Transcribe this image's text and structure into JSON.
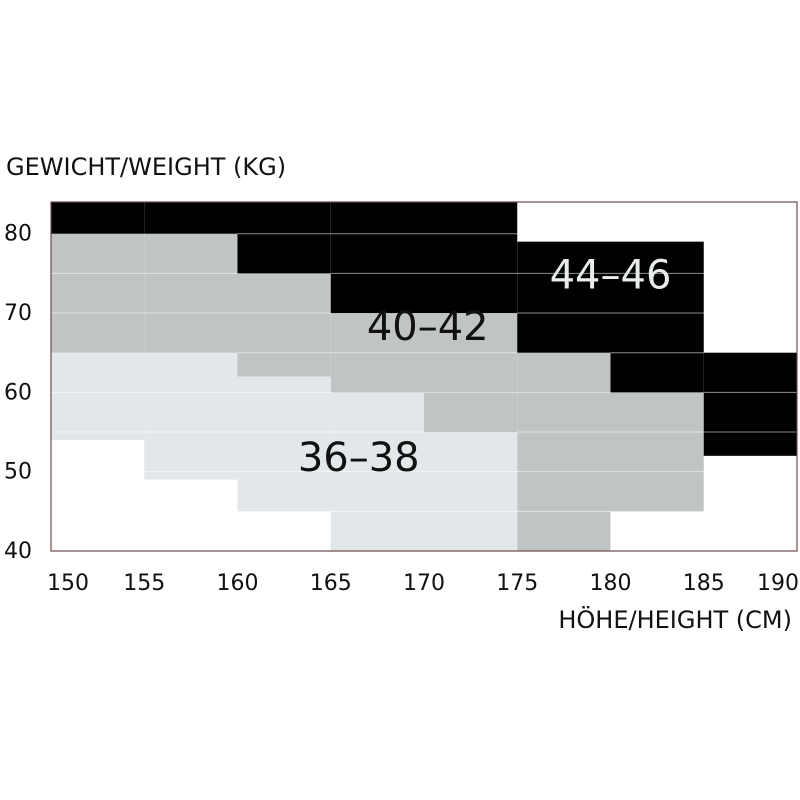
{
  "chart_data": {
    "type": "heatmap",
    "title": "",
    "ylabel": "GEWICHT/WEIGHT (KG)",
    "xlabel": "HÖHE/HEIGHT (CM)",
    "x_ticks": [
      "150",
      "155",
      "160",
      "165",
      "170",
      "175",
      "180",
      "185",
      "190"
    ],
    "y_ticks": [
      "80",
      "70",
      "60",
      "50",
      "40"
    ],
    "xlim": [
      150,
      190
    ],
    "ylim": [
      40,
      84
    ],
    "grid": true,
    "zones": [
      {
        "label": "36–38",
        "color": "#e2e8ea",
        "cells": [
          {
            "x": [
              150,
              155
            ],
            "y": [
              54,
              65
            ]
          },
          {
            "x": [
              155,
              160
            ],
            "y": [
              49,
              65
            ]
          },
          {
            "x": [
              160,
              165
            ],
            "y": [
              45,
              62
            ]
          },
          {
            "x": [
              165,
              170
            ],
            "y": [
              40,
              60
            ]
          },
          {
            "x": [
              170,
              175
            ],
            "y": [
              40,
              55
            ]
          }
        ]
      },
      {
        "label": "40–42",
        "color": "#c1c4c4",
        "cells": [
          {
            "x": [
              150,
              155
            ],
            "y": [
              65,
              80
            ]
          },
          {
            "x": [
              155,
              160
            ],
            "y": [
              65,
              80
            ]
          },
          {
            "x": [
              160,
              165
            ],
            "y": [
              62,
              75
            ]
          },
          {
            "x": [
              165,
              170
            ],
            "y": [
              60,
              70
            ]
          },
          {
            "x": [
              170,
              175
            ],
            "y": [
              55,
              70
            ]
          },
          {
            "x": [
              175,
              180
            ],
            "y": [
              40,
              65
            ]
          },
          {
            "x": [
              180,
              185
            ],
            "y": [
              45,
              60
            ]
          }
        ]
      },
      {
        "label": "44–46",
        "color": "#000000",
        "cells": [
          {
            "x": [
              150,
              155
            ],
            "y": [
              80,
              84
            ]
          },
          {
            "x": [
              155,
              160
            ],
            "y": [
              80,
              84
            ]
          },
          {
            "x": [
              160,
              165
            ],
            "y": [
              75,
              84
            ]
          },
          {
            "x": [
              165,
              170
            ],
            "y": [
              70,
              84
            ]
          },
          {
            "x": [
              170,
              175
            ],
            "y": [
              70,
              84
            ]
          },
          {
            "x": [
              175,
              180
            ],
            "y": [
              65,
              79
            ]
          },
          {
            "x": [
              180,
              185
            ],
            "y": [
              60,
              79
            ]
          },
          {
            "x": [
              185,
              190
            ],
            "y": [
              52,
              65
            ]
          }
        ]
      }
    ],
    "zone_labels": [
      {
        "text": "36–38",
        "x": 166.5,
        "y": 51.5,
        "color": "#111111"
      },
      {
        "text": "40–42",
        "x": 170.2,
        "y": 68.0,
        "color": "#111111"
      },
      {
        "text": "44–46",
        "x": 180.0,
        "y": 74.5,
        "color": "#e8ecec"
      }
    ]
  }
}
